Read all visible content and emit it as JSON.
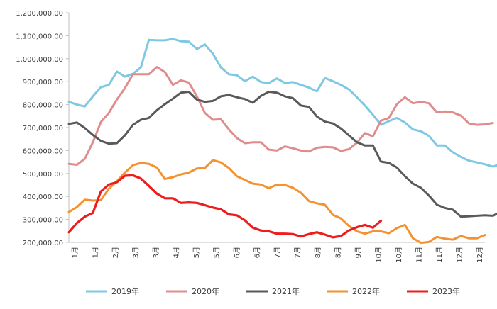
{
  "chart_data": {
    "type": "line",
    "ylim": [
      200000,
      1200000
    ],
    "yticks": [
      "200,000.00",
      "300,000.00",
      "400,000.00",
      "500,000.00",
      "600,000.00",
      "700,000.00",
      "800,000.00",
      "900,000.00",
      "1,000,000.00",
      "1,100,000.00",
      "1,200,000.00"
    ],
    "xticks": [
      "1月",
      "1月",
      "2月",
      "3月",
      "3月",
      "4月",
      "5月",
      "5月",
      "6月",
      "6月",
      "7月",
      "7月",
      "8月",
      "8月",
      "9月",
      "10月",
      "10月",
      "11月",
      "11月",
      "12月",
      "12月"
    ],
    "grid": false,
    "legend_position": "bottom",
    "x_weeks": 52,
    "series": [
      {
        "name": "2019年",
        "color": "#7ec8e3",
        "values": [
          812000,
          800000,
          792000,
          836000,
          876000,
          886000,
          944000,
          922000,
          934000,
          962000,
          1082000,
          1080000,
          1080000,
          1086000,
          1076000,
          1074000,
          1042000,
          1062000,
          1022000,
          962000,
          932000,
          928000,
          902000,
          922000,
          898000,
          894000,
          914000,
          894000,
          898000,
          886000,
          874000,
          858000,
          916000,
          902000,
          886000,
          866000,
          832000,
          796000,
          756000,
          712000,
          728000,
          742000,
          722000,
          692000,
          684000,
          664000,
          622000,
          622000,
          592000,
          572000,
          556000,
          548000,
          540000,
          530000,
          542000
        ]
      },
      {
        "name": "2020年",
        "color": "#e08c8c",
        "values": [
          542000,
          538000,
          564000,
          636000,
          724000,
          764000,
          822000,
          872000,
          932000,
          932000,
          932000,
          964000,
          942000,
          886000,
          906000,
          896000,
          836000,
          764000,
          734000,
          736000,
          692000,
          654000,
          632000,
          636000,
          636000,
          604000,
          600000,
          618000,
          610000,
          600000,
          596000,
          612000,
          616000,
          614000,
          598000,
          606000,
          634000,
          676000,
          662000,
          730000,
          742000,
          802000,
          832000,
          806000,
          812000,
          806000,
          766000,
          770000,
          766000,
          752000,
          718000,
          712000,
          714000,
          720000
        ]
      },
      {
        "name": "2021年",
        "color": "#595959",
        "values": [
          716000,
          722000,
          698000,
          668000,
          642000,
          630000,
          632000,
          666000,
          712000,
          734000,
          742000,
          776000,
          802000,
          826000,
          852000,
          856000,
          822000,
          812000,
          816000,
          836000,
          842000,
          832000,
          824000,
          808000,
          838000,
          856000,
          852000,
          836000,
          828000,
          796000,
          790000,
          748000,
          726000,
          718000,
          696000,
          666000,
          636000,
          622000,
          622000,
          552000,
          546000,
          526000,
          488000,
          456000,
          438000,
          404000,
          364000,
          350000,
          342000,
          312000,
          314000,
          316000,
          318000,
          316000,
          334000
        ]
      },
      {
        "name": "2022年",
        "color": "#f5922f",
        "values": [
          332000,
          354000,
          386000,
          382000,
          384000,
          434000,
          466000,
          504000,
          536000,
          546000,
          542000,
          526000,
          476000,
          484000,
          496000,
          504000,
          522000,
          524000,
          558000,
          548000,
          524000,
          488000,
          472000,
          456000,
          452000,
          436000,
          452000,
          450000,
          438000,
          416000,
          380000,
          370000,
          364000,
          320000,
          304000,
          272000,
          248000,
          238000,
          248000,
          248000,
          240000,
          262000,
          276000,
          218000,
          198000,
          202000,
          224000,
          216000,
          212000,
          228000,
          218000,
          218000,
          232000
        ]
      },
      {
        "name": "2023年",
        "color": "#ee1c1c",
        "values": [
          244000,
          284000,
          312000,
          328000,
          422000,
          452000,
          462000,
          490000,
          492000,
          478000,
          446000,
          412000,
          392000,
          392000,
          372000,
          374000,
          372000,
          362000,
          352000,
          344000,
          322000,
          318000,
          296000,
          264000,
          252000,
          248000,
          238000,
          238000,
          236000,
          226000,
          236000,
          244000,
          234000,
          222000,
          228000,
          252000,
          266000,
          276000,
          264000,
          294000
        ]
      }
    ]
  }
}
